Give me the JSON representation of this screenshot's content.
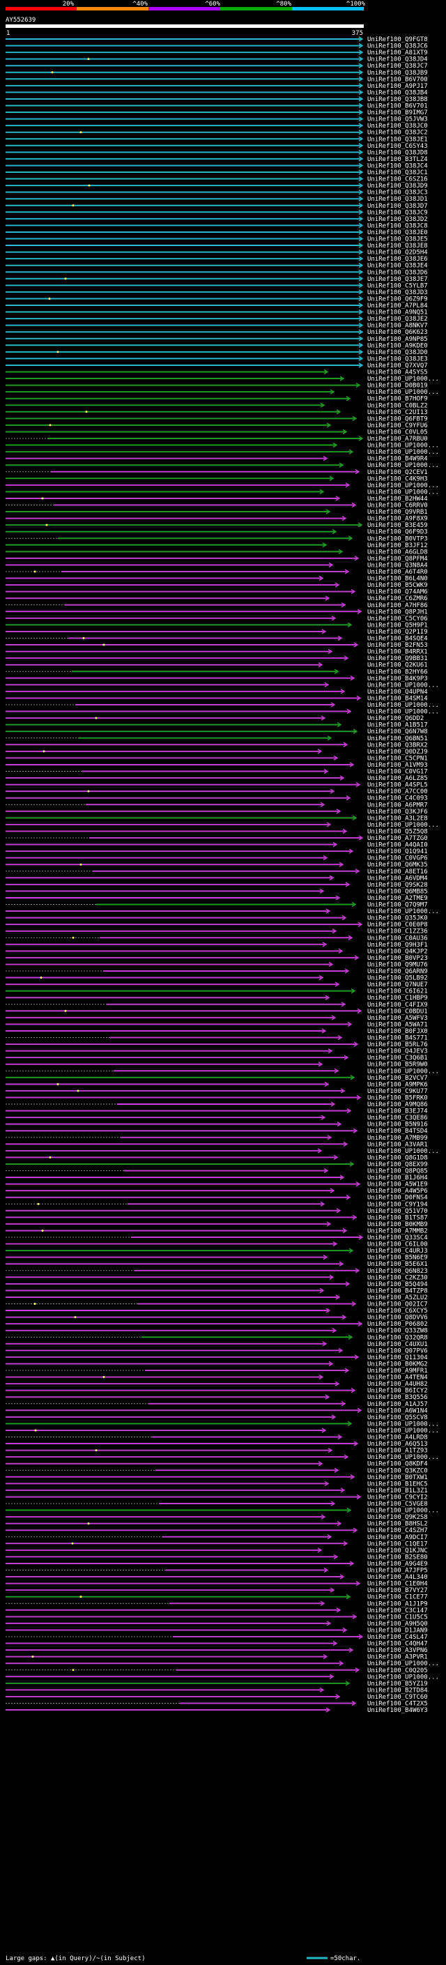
{
  "header": {
    "scale_labels": [
      "20%",
      "^40%",
      "^60%",
      "^80%",
      "^100%"
    ],
    "scale_colors": [
      "#ff0000",
      "#ff8800",
      "#aa00ff",
      "#00aa00",
      "#00c0ff"
    ]
  },
  "query": {
    "name": "AY552639",
    "start": "1",
    "end": "375"
  },
  "colors": {
    "band_cyan": "#27b7c9",
    "band_green": "#1f9a24",
    "band_magenta": "#c13ccf",
    "gap_line": "#888888",
    "query_bar": "#ffffff",
    "marker": "#ffff66"
  },
  "hits": [
    "UniRef100_Q9FGT8",
    "UniRef100_Q38JC6",
    "UniRef100_A81XT9",
    "UniRef100_Q38JD4",
    "UniRef100_Q38JC7",
    "UniRef100_Q38JB9",
    "UniRef100_B6V700",
    "UniRef100_A9PJ17",
    "UniRef100_Q38JB4",
    "UniRef100_Q38JB8",
    "UniRef100_B6V701",
    "UniRef100_B9IMG7",
    "UniRef100_Q5JVW3",
    "UniRef100_Q38JC0",
    "UniRef100_Q38JC2",
    "UniRef100_Q38JE1",
    "UniRef100_C6SY43",
    "UniRef100_Q38JD8",
    "UniRef100_B3TLZ4",
    "UniRef100_Q38JC4",
    "UniRef100_Q38JC1",
    "UniRef100_C6SZ16",
    "UniRef100_Q38JD9",
    "UniRef100_Q38JC3",
    "UniRef100_Q38JD1",
    "UniRef100_Q38JD7",
    "UniRef100_Q38JC9",
    "UniRef100_Q38JD2",
    "UniRef100_Q38JC8",
    "UniRef100_Q38JE0",
    "UniRef100_Q38JE5",
    "UniRef100_Q38JE8",
    "UniRef100_Q2D5H4",
    "UniRef100_Q38JE6",
    "UniRef100_Q38JE4",
    "UniRef100_Q38JD6",
    "UniRef100_Q38JE7",
    "UniRef100_C5YLB7",
    "UniRef100_Q38JD3",
    "UniRef100_Q6Z9F9",
    "UniRef100_A7PL84",
    "UniRef100_A9NQ51",
    "UniRef100_Q38JE2",
    "UniRef100_A8NKV7",
    "UniRef100_Q6K623",
    "UniRef100_A9NP85",
    "UniRef100_A9KDE0",
    "UniRef100_Q38JD0",
    "UniRef100_Q38JE3",
    "UniRef100_Q7XVQ7",
    "UniRef100_A4SYS5",
    "UniRef100_UP1000...",
    "UniRef100_D0B019",
    "UniRef100_UP1000...",
    "UniRef100_B7HOF9",
    "UniRef100_C0BLZ2",
    "UniRef100_C2UI13",
    "UniRef100_Q6FBT9",
    "UniRef100_C9YFU6",
    "UniRef100_C0VL05",
    "UniRef100_A7RBU0",
    "UniRef100_UP1000...",
    "UniRef100_UP1000...",
    "UniRef100_B4W9R4",
    "UniRef100_UP1000...",
    "UniRef100_Q2CEV1",
    "UniRef100_C4K9H3",
    "UniRef100_UP1000...",
    "UniRef100_UP1000...",
    "UniRef100_B2HW44",
    "UniRef100_C6RRV0",
    "UniRef100_Q9VRB1",
    "UniRef100_A9F8X9",
    "UniRef100_B3E459",
    "UniRef100_Q6F9D3",
    "UniRef100_B0VTP3",
    "UniRef100_B3JF12",
    "UniRef100_A6GLD8",
    "UniRef100_Q8PFM4",
    "UniRef100_Q3N8A4",
    "UniRef100_A6T4R0",
    "UniRef100_B6L4N0",
    "UniRef100_B5CWK9",
    "UniRef100_Q74AM6",
    "UniRef100_C6ZMR6",
    "UniRef100_A7HF86",
    "UniRef100_Q8PJH1",
    "UniRef100_C5CY06",
    "UniRef100_Q5H9P1",
    "UniRef100_Q2P1I9",
    "UniRef100_B4SQE4",
    "UniRef100_B2FN53",
    "UniRef100_B4RRX1",
    "UniRef100_Q9BB31",
    "UniRef100_Q2KU61",
    "UniRef100_B2HY66",
    "UniRef100_B4K9P3",
    "UniRef100_UP1000...",
    "UniRef100_Q4UPN4",
    "UniRef100_B4SM14",
    "UniRef100_UP1000...",
    "UniRef100_UP1000...",
    "UniRef100_Q6DD2",
    "UniRef100_A1B517",
    "UniRef100_Q6N7W8",
    "UniRef100_Q6BN51",
    "UniRef100_Q3BRX2",
    "UniRef100_Q0DZJ9",
    "UniRef100_C5CPN1",
    "UniRef100_A1VM93",
    "UniRef100_C0VG17",
    "UniRef100_A6LZ85",
    "UniRef100_A4SPL5",
    "UniRef100_A7CC00",
    "UniRef100_C4C093",
    "UniRef100_A6PMR7",
    "UniRef100_Q3KJF6",
    "UniRef100_A3L2E8",
    "UniRef100_UP1000...",
    "UniRef100_Q5Z5Q8",
    "UniRef100_A7TZG0",
    "UniRef100_A4QAI0",
    "UniRef100_Q1Q941",
    "UniRef100_C0VGP6",
    "UniRef100_Q6MK35",
    "UniRef100_A8ET16",
    "UniRef100_A6VDM4",
    "UniRef100_Q9SK28",
    "UniRef100_Q6MB85",
    "UniRef100_A2TME9",
    "UniRef100_Q7Q9M7",
    "UniRef100_UP1000...",
    "UniRef100_Q35JK0",
    "UniRef100_C0E0P8",
    "UniRef100_C1ZZ36",
    "UniRef100_C0AU36",
    "UniRef100_Q9H3F1",
    "UniRef100_Q4KJP2",
    "UniRef100_B0VP23",
    "UniRef100_Q9MU76",
    "UniRef100_Q6ARN9",
    "UniRef100_Q5LB92",
    "UniRef100_Q7NUE7",
    "UniRef100_C6I621",
    "UniRef100_C1HBP9",
    "UniRef100_C4FIX9",
    "UniRef100_C0BDU1",
    "UniRef100_A5WFV3",
    "UniRef100_A5WA71",
    "UniRef100_B0FJX0",
    "UniRef100_B4S771",
    "UniRef100_B5RL76",
    "UniRef100_Q4JEV3",
    "UniRef100_C3Q6B1",
    "UniRef100_B5R9W0",
    "UniRef100_UP1000...",
    "UniRef100_B2VCV7",
    "UniRef100_A9MPK6",
    "UniRef100_C9KU77",
    "UniRef100_B5FRK0",
    "UniRef100_A9MQ86",
    "UniRef100_B3EJ74",
    "UniRef100_C3QE86",
    "UniRef100_B5N916",
    "UniRef100_B4TSD4",
    "UniRef100_A7MB99",
    "UniRef100_A3VAR1",
    "UniRef100_UP1000...",
    "UniRef100_Q8G1D8",
    "UniRef100_Q8EX99",
    "UniRef100_Q8PQ85",
    "UniRef100_B1J6H4",
    "UniRef100_A5W1E9",
    "UniRef100_A4W5P6",
    "UniRef100_D0FNS4",
    "UniRef100_C9Y194",
    "UniRef100_Q51V70",
    "UniRef100_B1TS87",
    "UniRef100_B0KMB9",
    "UniRef100_A7MMB2",
    "UniRef100_Q33SC4",
    "UniRef100_C6IL00",
    "UniRef100_C4URJ3",
    "UniRef100_B5N6E9",
    "UniRef100_B5E6X1",
    "UniRef100_Q6N823",
    "UniRef100_C2KZ30",
    "UniRef100_B5Q494",
    "UniRef100_B4TZP8",
    "UniRef100_A5ZLU2",
    "UniRef100_Q02IC7",
    "UniRef100_C6XCY5",
    "UniRef100_Q8DVV6",
    "UniRef100_P06802",
    "UniRef100_Q33ZW8",
    "UniRef100_Q32QR8",
    "UniRef100_C4UXU1",
    "UniRef100_Q07PV6",
    "UniRef100_Q11304",
    "UniRef100_B0KMG2",
    "UniRef100_A9MFR1",
    "UniRef100_A4TEN4",
    "UniRef100_A4UH82",
    "UniRef100_B6ICY2",
    "UniRef100_B3Q556",
    "UniRef100_A1AJ57",
    "UniRef100_A6W1N4",
    "UniRef100_Q5SCV8",
    "UniRef100_UP1000...",
    "UniRef100_UP1000...",
    "UniRef100_A4LRD8",
    "UniRef100_A6Q513",
    "UniRef100_A1TZ93",
    "UniRef100_UP1000...",
    "UniRef100_Q8KDF4",
    "UniRef100_Q3KZC0",
    "UniRef100_B0TXW1",
    "UniRef100_B1EHC5",
    "UniRef100_B1L3Z1",
    "UniRef100_C9CYI2",
    "UniRef100_C5VGE8",
    "UniRef100_UP1000...",
    "UniRef100_Q9K2S8",
    "UniRef100_B8HSL2",
    "UniRef100_C4SZH7",
    "UniRef100_A9DCI7",
    "UniRef100_C1QE17",
    "UniRef100_Q1KJNC",
    "UniRef100_B2SE80",
    "UniRef100_A9G4E9",
    "UniRef100_A7JFP5",
    "UniRef100_A4L340",
    "UniRef100_C1E0H4",
    "UniRef100_B7VY27",
    "UniRef100_C1CE77",
    "UniRef100_A1J1P9",
    "UniRef100_C3C147",
    "UniRef100_C1U5C5",
    "UniRef100_A9H5Q0",
    "UniRef100_D1JAN9",
    "UniRef100_C4SL47",
    "UniRef100_C4QH47",
    "UniRef100_A3VPN6",
    "UniRef100_A3PVR1",
    "UniRef100_UP1000...",
    "UniRef100_C0Q205",
    "UniRef100_UP1000...",
    "UniRef100_B5YZ19",
    "UniRef100_B2TD84",
    "UniRef100_C9TC60",
    "UniRef100_C4T2X5",
    "UniRef100_B4W6Y3"
  ],
  "footer": {
    "legend_text": "Large gaps: ▲(in Query)/~(in Subject)",
    "scale_text": "=50char."
  }
}
